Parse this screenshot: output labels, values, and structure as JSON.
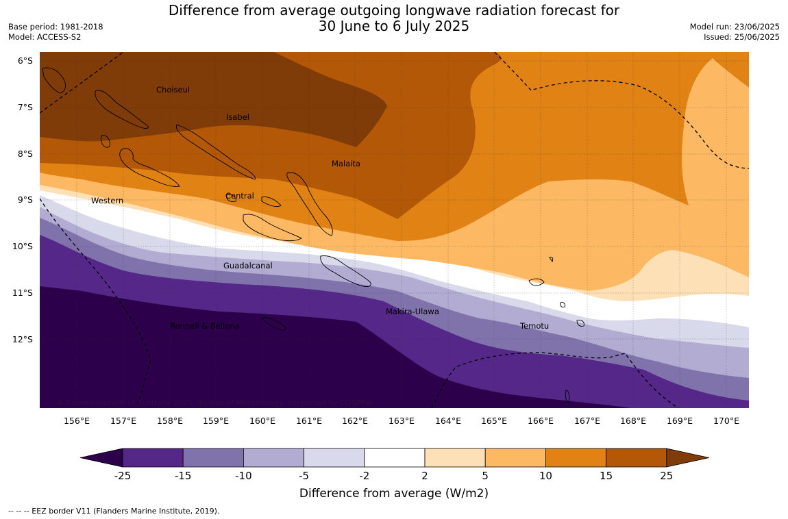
{
  "title": {
    "line1": "Difference from average outgoing longwave radiation forecast for",
    "line2": "30 June to 6 July 2025"
  },
  "meta": {
    "base_period": "Base period: 1981-2018",
    "model": "Model: ACCESS-S2",
    "model_run": "Model run: 23/06/2025",
    "issued": "Issued: 25/06/2025"
  },
  "axes": {
    "lat_labels": [
      "6°S",
      "7°S",
      "8°S",
      "9°S",
      "10°S",
      "11°S",
      "12°S"
    ],
    "lon_labels": [
      "156°E",
      "157°E",
      "158°E",
      "159°E",
      "160°E",
      "161°E",
      "162°E",
      "163°E",
      "164°E",
      "165°E",
      "166°E",
      "167°E",
      "168°E",
      "169°E",
      "170°E"
    ]
  },
  "regions": [
    "Choiseul",
    "Isabel",
    "Malaita",
    "Western",
    "Central",
    "Guadalcanal",
    "Makira-Ulawa",
    "Rennell & Bellona",
    "Temotu"
  ],
  "copyright": "© Commonwealth of Australia 2025, Bureau of Meteorology, supported by COSPPac",
  "colorbar": {
    "boundaries": [
      "-25",
      "-15",
      "-10",
      "-5",
      "-2",
      "2",
      "5",
      "10",
      "15",
      "25"
    ],
    "colors": [
      "#2d004b",
      "#542788",
      "#8073ac",
      "#b2abd2",
      "#d8daeb",
      "#ffffff",
      "#fee0b6",
      "#fdb863",
      "#e08214",
      "#b35806",
      "#7f3b08"
    ],
    "title": "Difference from average (W/m2)"
  },
  "footnote": "--  --  -- EEZ border V11 (Flanders Marine Institute, 2019)."
}
